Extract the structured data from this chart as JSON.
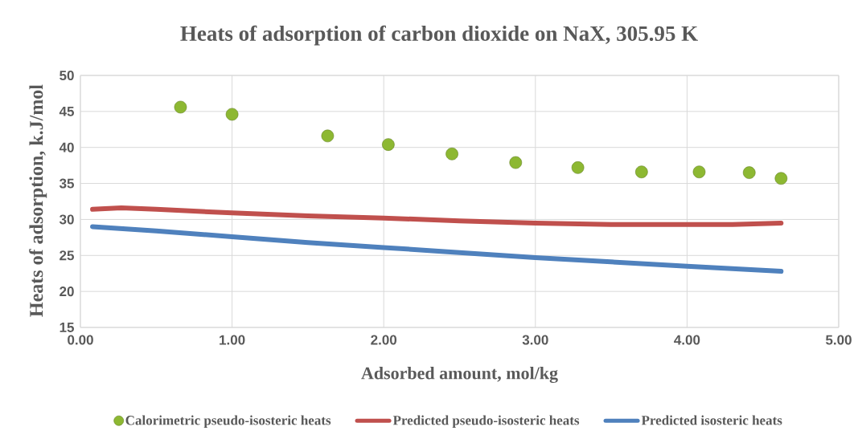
{
  "chart_data": {
    "type": "scatter",
    "title": "Heats of adsorption of carbon dioxide on NaX, 305.95 K",
    "xlabel": "Adsorbed amount, mol/kg",
    "ylabel": "Heats of adsorption, k.J/mol",
    "series": [
      {
        "name": "Calorimetric pseudo-isosteric heats",
        "marker": "circle",
        "color": "#8db832",
        "x": [
          0.66,
          1.0,
          1.63,
          2.03,
          2.45,
          2.87,
          3.28,
          3.7,
          4.08,
          4.41,
          4.62
        ],
        "values": [
          45.6,
          44.6,
          41.6,
          40.4,
          39.1,
          37.9,
          37.2,
          36.6,
          36.6,
          36.5,
          35.7
        ]
      },
      {
        "name": "Predicted pseudo-isosteric heats",
        "type": "line",
        "line_style": "solid",
        "color": "#c0504d",
        "x": [
          0.08,
          0.27,
          0.5,
          1.0,
          1.5,
          2.0,
          2.5,
          3.0,
          3.5,
          4.0,
          4.3,
          4.62
        ],
        "values": [
          31.4,
          31.6,
          31.4,
          30.9,
          30.5,
          30.2,
          29.8,
          29.5,
          29.3,
          29.3,
          29.3,
          29.5
        ]
      },
      {
        "name": "Predicted isosteric heats",
        "type": "line",
        "line_style": "solid",
        "color": "#4f81bd",
        "x": [
          0.08,
          0.5,
          1.0,
          1.5,
          2.0,
          2.5,
          3.0,
          3.5,
          4.0,
          4.62
        ],
        "values": [
          29.0,
          28.4,
          27.6,
          26.8,
          26.1,
          25.4,
          24.7,
          24.1,
          23.5,
          22.8
        ]
      }
    ],
    "xlim": [
      0,
      5
    ],
    "ylim": [
      15,
      50
    ],
    "xticks": [
      {
        "value": 0,
        "label": "0.00"
      },
      {
        "value": 1,
        "label": "1.00"
      },
      {
        "value": 2,
        "label": "2.00"
      },
      {
        "value": 3,
        "label": "3.00"
      },
      {
        "value": 4,
        "label": "4.00"
      },
      {
        "value": 5,
        "label": "5.00"
      }
    ],
    "yticks": [
      15,
      20,
      25,
      30,
      35,
      40,
      45,
      50
    ],
    "grid": true,
    "legend": "bottom"
  }
}
